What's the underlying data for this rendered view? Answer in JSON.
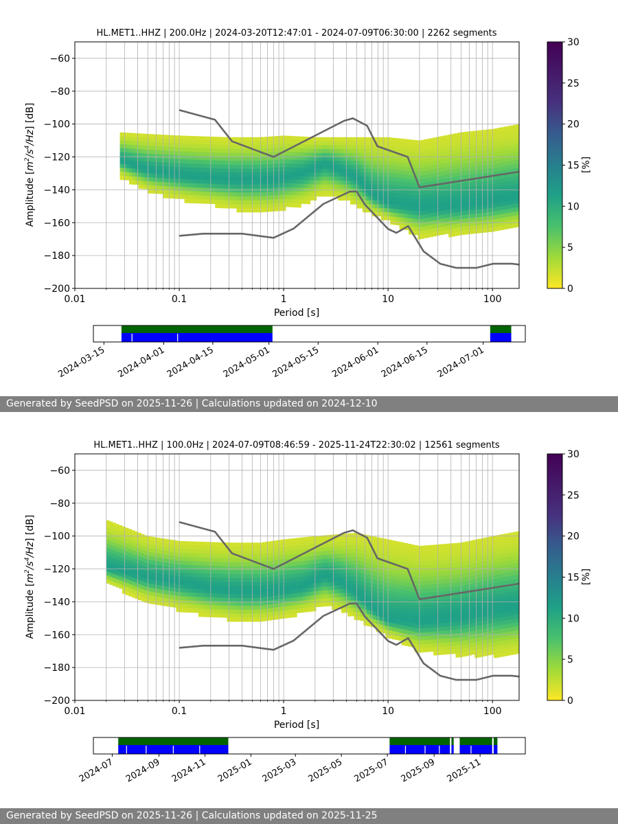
{
  "colors": {
    "nlnm_nhnm": "#666666",
    "grid": "#b0b0b0",
    "coverage_top": "#006400",
    "coverage_bottom": "#0000ff",
    "footer_bg": "#808080",
    "colormap": "viridis_r"
  },
  "footers": [
    "Generated by SeedPSD on 2025-11-26 | Calculations updated on 2024-12-10",
    "Generated by SeedPSD on 2025-11-26 | Calculations updated on 2025-11-25"
  ],
  "chart_data": [
    {
      "type": "heatmap",
      "title": "HL.MET1..HHZ | 200.0Hz | 2024-03-20T12:47:01 - 2024-07-09T06:30:00 | 2262 segments",
      "xlabel": "Period [s]",
      "ylabel_parts": [
        "Amplitude [",
        "m",
        "2",
        "/s",
        "4",
        "/Hz",
        "] [dB]"
      ],
      "x_scale": "log",
      "xlim": [
        0.01,
        180
      ],
      "ylim": [
        -200,
        -50
      ],
      "x_ticks": [
        0.01,
        0.1,
        1,
        10,
        100
      ],
      "x_tick_labels": [
        "0.01",
        "0.1",
        "1",
        "10",
        "100"
      ],
      "y_ticks": [
        -200,
        -180,
        -160,
        -140,
        -120,
        -100,
        -80,
        -60
      ],
      "y_tick_labels": [
        "−200",
        "−180",
        "−160",
        "−140",
        "−120",
        "−100",
        "−80",
        "−60"
      ],
      "colorbar": {
        "label": "[%]",
        "range": [
          0,
          30
        ],
        "ticks": [
          0,
          5,
          10,
          15,
          20,
          25,
          30
        ],
        "tick_labels": [
          "0",
          "5",
          "10",
          "15",
          "20",
          "25",
          "30"
        ]
      },
      "grid": true,
      "psd_distribution": {
        "period_min": 0.027,
        "mode": [
          [
            0.027,
            -122
          ],
          [
            0.05,
            -128
          ],
          [
            0.1,
            -131
          ],
          [
            0.2,
            -133
          ],
          [
            0.4,
            -134
          ],
          [
            0.8,
            -134
          ],
          [
            1.5,
            -130
          ],
          [
            2.5,
            -124
          ],
          [
            3.5,
            -128
          ],
          [
            5,
            -133
          ],
          [
            7,
            -143
          ],
          [
            10,
            -148
          ],
          [
            20,
            -151
          ],
          [
            50,
            -150
          ],
          [
            100,
            -147
          ],
          [
            180,
            -145
          ]
        ],
        "lower": [
          [
            0.027,
            -131
          ],
          [
            0.05,
            -140
          ],
          [
            0.1,
            -145
          ],
          [
            0.2,
            -148
          ],
          [
            0.4,
            -152
          ],
          [
            0.8,
            -152
          ],
          [
            1.5,
            -148
          ],
          [
            2.5,
            -142
          ],
          [
            4,
            -145
          ],
          [
            6,
            -152
          ],
          [
            10,
            -158
          ],
          [
            20,
            -168
          ],
          [
            50,
            -166
          ],
          [
            100,
            -165
          ],
          [
            180,
            -162
          ]
        ],
        "upper": [
          [
            0.027,
            -105
          ],
          [
            0.05,
            -106
          ],
          [
            0.1,
            -107
          ],
          [
            0.3,
            -108
          ],
          [
            0.6,
            -108
          ],
          [
            1,
            -107
          ],
          [
            2,
            -108
          ],
          [
            5,
            -108
          ],
          [
            10,
            -108
          ],
          [
            20,
            -110
          ],
          [
            50,
            -105
          ],
          [
            100,
            -103
          ],
          [
            180,
            -100
          ]
        ]
      },
      "nhnm": [
        [
          0.1,
          -91.5
        ],
        [
          0.22,
          -97.4
        ],
        [
          0.32,
          -110.5
        ],
        [
          0.8,
          -120
        ],
        [
          3.8,
          -98
        ],
        [
          4.6,
          -96.5
        ],
        [
          6.3,
          -101
        ],
        [
          7.9,
          -113.5
        ],
        [
          15.4,
          -120
        ],
        [
          20,
          -138.5
        ],
        [
          354.8,
          -126
        ]
      ],
      "nlnm": [
        [
          0.1,
          -168
        ],
        [
          0.17,
          -166.7
        ],
        [
          0.4,
          -166.7
        ],
        [
          0.8,
          -169.2
        ],
        [
          1.24,
          -163.7
        ],
        [
          2.4,
          -148.6
        ],
        [
          4.3,
          -141.1
        ],
        [
          5,
          -141.1
        ],
        [
          6,
          -149
        ],
        [
          10,
          -163.8
        ],
        [
          12,
          -166.2
        ],
        [
          15.6,
          -162.1
        ],
        [
          21.9,
          -177.5
        ],
        [
          31.6,
          -185
        ],
        [
          45,
          -187.5
        ],
        [
          70,
          -187.5
        ],
        [
          101,
          -185
        ],
        [
          154,
          -185
        ],
        [
          328,
          -187.5
        ]
      ],
      "coverage": {
        "xlabels": [
          "2024-03-15",
          "2024-04-01",
          "2024-04-15",
          "2024-05-01",
          "2024-05-15",
          "2024-06-01",
          "2024-06-15",
          "2024-07-01"
        ],
        "range": [
          "2024-03-12",
          "2024-07-13"
        ],
        "segments": [
          [
            "2024-03-20",
            "2024-05-02"
          ],
          [
            "2024-07-03",
            "2024-07-09"
          ]
        ],
        "gaps": [
          "2024-03-23",
          "2024-04-05"
        ]
      }
    },
    {
      "type": "heatmap",
      "title": "HL.MET1..HHZ | 100.0Hz | 2024-07-09T08:46:59 - 2025-11-24T22:30:02 | 12561 segments",
      "xlabel": "Period [s]",
      "ylabel_parts": [
        "Amplitude [",
        "m",
        "2",
        "/s",
        "4",
        "/Hz",
        "] [dB]"
      ],
      "x_scale": "log",
      "xlim": [
        0.01,
        180
      ],
      "ylim": [
        -200,
        -50
      ],
      "x_ticks": [
        0.01,
        0.1,
        1,
        10,
        100
      ],
      "x_tick_labels": [
        "0.01",
        "0.1",
        "1",
        "10",
        "100"
      ],
      "y_ticks": [
        -200,
        -180,
        -160,
        -140,
        -120,
        -100,
        -80,
        -60
      ],
      "y_tick_labels": [
        "−200",
        "−180",
        "−160",
        "−140",
        "−120",
        "−100",
        "−80",
        "−60"
      ],
      "colorbar": {
        "label": "[%]",
        "range": [
          0,
          30
        ],
        "ticks": [
          0,
          5,
          10,
          15,
          20,
          25,
          30
        ],
        "tick_labels": [
          "0",
          "5",
          "10",
          "15",
          "20",
          "25",
          "30"
        ]
      },
      "grid": true,
      "psd_distribution": {
        "period_min": 0.02,
        "mode": [
          [
            0.02,
            -119
          ],
          [
            0.05,
            -125
          ],
          [
            0.1,
            -128
          ],
          [
            0.2,
            -132
          ],
          [
            0.4,
            -134
          ],
          [
            0.8,
            -134
          ],
          [
            1.5,
            -131
          ],
          [
            2.5,
            -124
          ],
          [
            3.5,
            -128
          ],
          [
            5,
            -135
          ],
          [
            7,
            -144
          ],
          [
            10,
            -151
          ],
          [
            20,
            -152
          ],
          [
            50,
            -149
          ],
          [
            100,
            -145
          ],
          [
            180,
            -143
          ]
        ],
        "lower": [
          [
            0.02,
            -128
          ],
          [
            0.05,
            -139
          ],
          [
            0.1,
            -144
          ],
          [
            0.2,
            -148
          ],
          [
            0.4,
            -151
          ],
          [
            0.8,
            -150
          ],
          [
            1.5,
            -146
          ],
          [
            2.5,
            -141
          ],
          [
            4,
            -146
          ],
          [
            6,
            -152
          ],
          [
            10,
            -160
          ],
          [
            20,
            -169
          ],
          [
            50,
            -172
          ],
          [
            100,
            -172
          ],
          [
            180,
            -170
          ]
        ],
        "upper": [
          [
            0.02,
            -90
          ],
          [
            0.05,
            -100
          ],
          [
            0.1,
            -103
          ],
          [
            0.3,
            -104
          ],
          [
            0.6,
            -104
          ],
          [
            1,
            -102
          ],
          [
            2,
            -100
          ],
          [
            5,
            -98
          ],
          [
            10,
            -102
          ],
          [
            20,
            -106
          ],
          [
            50,
            -104
          ],
          [
            100,
            -100
          ],
          [
            180,
            -97
          ]
        ]
      },
      "nhnm": [
        [
          0.1,
          -91.5
        ],
        [
          0.22,
          -97.4
        ],
        [
          0.32,
          -110.5
        ],
        [
          0.8,
          -120
        ],
        [
          3.8,
          -98
        ],
        [
          4.6,
          -96.5
        ],
        [
          6.3,
          -101
        ],
        [
          7.9,
          -113.5
        ],
        [
          15.4,
          -120
        ],
        [
          20,
          -138.5
        ],
        [
          354.8,
          -126
        ]
      ],
      "nlnm": [
        [
          0.1,
          -168
        ],
        [
          0.17,
          -166.7
        ],
        [
          0.4,
          -166.7
        ],
        [
          0.8,
          -169.2
        ],
        [
          1.24,
          -163.7
        ],
        [
          2.4,
          -148.6
        ],
        [
          4.3,
          -141.1
        ],
        [
          5,
          -141.1
        ],
        [
          6,
          -149
        ],
        [
          10,
          -163.8
        ],
        [
          12,
          -166.2
        ],
        [
          15.6,
          -162.1
        ],
        [
          21.9,
          -177.5
        ],
        [
          31.6,
          -185
        ],
        [
          45,
          -187.5
        ],
        [
          70,
          -187.5
        ],
        [
          101,
          -185
        ],
        [
          154,
          -185
        ],
        [
          328,
          -187.5
        ]
      ],
      "coverage": {
        "xlabels": [
          "2024-07",
          "2024-09",
          "2024-11",
          "2025-01",
          "2025-03",
          "2025-05",
          "2025-07",
          "2025-09",
          "2025-11"
        ],
        "range": [
          "2024-06-06",
          "2025-12-31"
        ],
        "segments": [
          [
            "2024-07-09",
            "2024-12-02"
          ],
          [
            "2025-07-04",
            "2025-09-22"
          ],
          [
            "2025-09-24",
            "2025-09-27"
          ],
          [
            "2025-10-05",
            "2025-11-17"
          ],
          [
            "2025-11-19",
            "2025-11-24"
          ]
        ],
        "gaps": [
          "2024-07-20",
          "2024-08-15",
          "2024-09-20",
          "2024-10-25",
          "2025-07-25",
          "2025-08-20",
          "2025-09-08",
          "2025-10-20"
        ]
      }
    }
  ]
}
